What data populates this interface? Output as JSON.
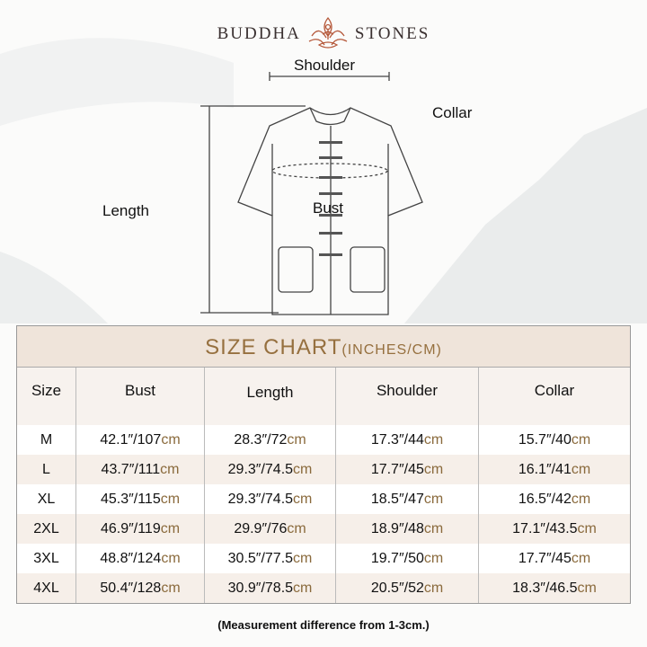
{
  "brand": {
    "left": "BUDDHA",
    "right": "STONES",
    "logo_icon": "lotus-meditation-icon",
    "logo_color": "#b5583a"
  },
  "diagram": {
    "shoulder": "Shoulder",
    "collar": "Collar",
    "length": "Length",
    "bust": "Bust"
  },
  "table": {
    "title": "SIZE CHART",
    "title_unit": "(INCHES/CM)",
    "headers": [
      "Size",
      "Bust",
      "Length",
      "Shoulder",
      "Collar"
    ],
    "unit": "cm",
    "rows": [
      {
        "size": "M",
        "bust": "42.1″/107",
        "length": "28.3″/72",
        "shoulder": "17.3″/44",
        "collar": "15.7″/40"
      },
      {
        "size": "L",
        "bust": "43.7″/111",
        "length": "29.3″/74.5",
        "shoulder": "17.7″/45",
        "collar": "16.1″/41"
      },
      {
        "size": "XL",
        "bust": "45.3″/115",
        "length": "29.3″/74.5",
        "shoulder": "18.5″/47",
        "collar": "16.5″/42"
      },
      {
        "size": "2XL",
        "bust": "46.9″/119",
        "length": "29.9″/76",
        "shoulder": "18.9″/48",
        "collar": "17.1″/43.5"
      },
      {
        "size": "3XL",
        "bust": "48.8″/124",
        "length": "30.5″/77.5",
        "shoulder": "19.7″/50",
        "collar": "17.7″/45"
      },
      {
        "size": "4XL",
        "bust": "50.4″/128",
        "length": "30.9″/78.5",
        "shoulder": "20.5″/52",
        "collar": "18.3″/46.5"
      }
    ],
    "accent": "#96703f"
  },
  "note": "(Measurement difference from 1-3cm.)"
}
